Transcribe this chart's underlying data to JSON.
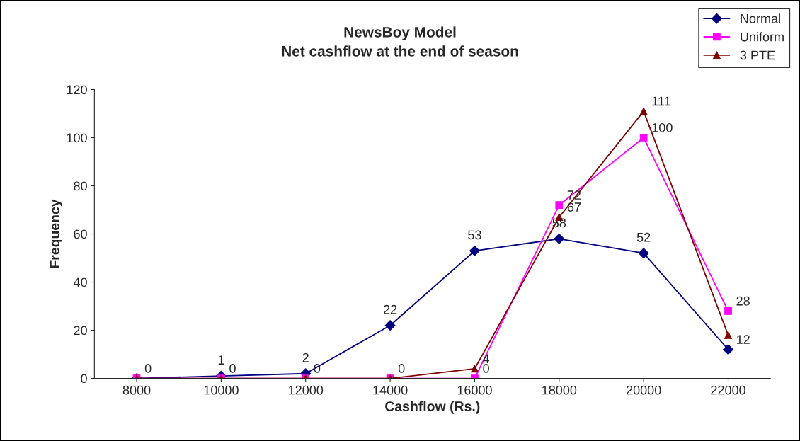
{
  "chart_data": {
    "type": "line",
    "title": "NewsBoy Model\nNet cashflow at the end of season",
    "xlabel": "Cashflow (Rs.)",
    "ylabel": "Frequency",
    "categories": [
      "8000",
      "10000",
      "12000",
      "14000",
      "16000",
      "18000",
      "20000",
      "22000"
    ],
    "series": [
      {
        "name": "Normal",
        "color": "#000080",
        "marker": "diamond",
        "values": [
          0,
          1,
          2,
          22,
          53,
          58,
          52,
          12
        ],
        "value_labels": [
          null,
          "1",
          "2",
          "22",
          "53",
          "58",
          "52",
          "12"
        ]
      },
      {
        "name": "Uniform",
        "color": "#ff00ff",
        "marker": "square",
        "values": [
          0,
          0,
          0,
          0,
          0,
          72,
          100,
          28
        ],
        "value_labels": [
          null,
          null,
          null,
          null,
          "0",
          "72",
          "100",
          "28"
        ]
      },
      {
        "name": "3 PTE",
        "color": "#800000",
        "marker": "triangle",
        "values": [
          0,
          0,
          0,
          0,
          4,
          67,
          111,
          18
        ],
        "value_labels": [
          "0",
          "0",
          "0",
          "0",
          "4",
          "67",
          "111",
          null
        ]
      }
    ],
    "ylim": [
      0,
      120
    ],
    "yticks": [
      0,
      20,
      40,
      60,
      80,
      100,
      120
    ],
    "grid": false,
    "legend": "top right"
  }
}
